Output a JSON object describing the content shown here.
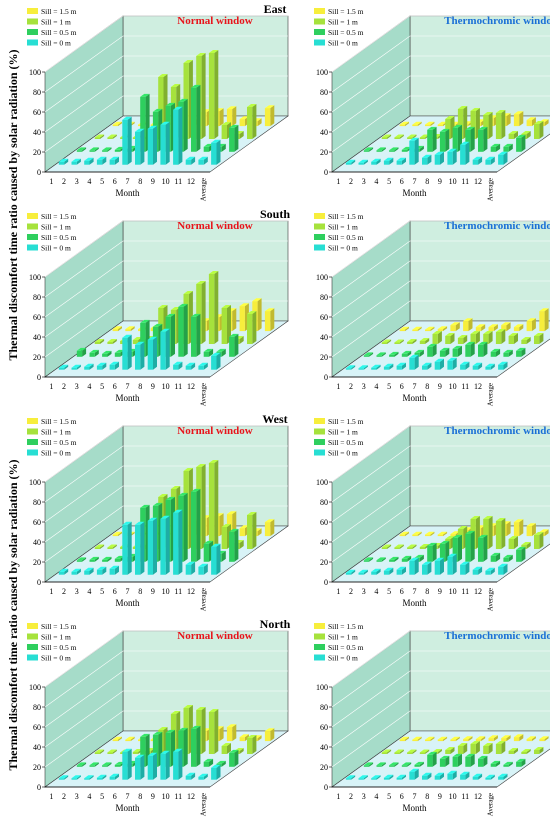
{
  "figure": {
    "y_axis_title": "Thermal discomfort time ratio caused by solar radiation (%)",
    "row_titles": [
      "East",
      "South",
      "West",
      "North"
    ],
    "column_titles": [
      "Normal window",
      "Thermochromic window"
    ],
    "x_axis_title": "Month",
    "x_tick_labels": [
      "1",
      "2",
      "3",
      "4",
      "5",
      "6",
      "7",
      "8",
      "9",
      "10",
      "11",
      "12",
      "Average"
    ],
    "y_tick_labels": [
      "0",
      "20",
      "40",
      "60",
      "80",
      "100"
    ],
    "legend": [
      "Sill = 1.5 m",
      "Sill = 1 m",
      "Sill = 0.5 m",
      "Sill = 0 m"
    ],
    "colors": {
      "normal_title": "#e8141b",
      "thermochromic_title": "#1a6fd6",
      "series": [
        "#f7ee3c",
        "#a6e23c",
        "#2ecf5e",
        "#27ded3"
      ],
      "back_wall": "#cfeee0",
      "side_wall": "#a6dcc9",
      "floor": "#d8f3f7",
      "grid": "#ffffff"
    }
  },
  "chart_data": [
    {
      "type": "bar",
      "orientation": "East",
      "window": "Normal window",
      "title": "Normal window",
      "xlabel": "Month",
      "ylabel": "Thermal discomfort time ratio caused by solar radiation (%)",
      "ylim": [
        0,
        100
      ],
      "categories": [
        "1",
        "2",
        "3",
        "4",
        "5",
        "6",
        "7",
        "8",
        "9",
        "10",
        "11",
        "12",
        "Average"
      ],
      "series": [
        {
          "name": "Sill = 0 m",
          "values": [
            3,
            3,
            4,
            5,
            5,
            45,
            33,
            36,
            40,
            55,
            5,
            5,
            22
          ]
        },
        {
          "name": "Sill = 0.5 m",
          "values": [
            1,
            1,
            1,
            2,
            3,
            55,
            40,
            46,
            50,
            64,
            5,
            5,
            24
          ]
        },
        {
          "name": "Sill = 1 m",
          "values": [
            1,
            1,
            1,
            1,
            2,
            62,
            52,
            76,
            83,
            86,
            14,
            5,
            32
          ]
        },
        {
          "name": "Sill = 1.5 m",
          "values": [
            1,
            1,
            1,
            1,
            1,
            2,
            5,
            14,
            15,
            17,
            7,
            5,
            18
          ]
        }
      ]
    },
    {
      "type": "bar",
      "orientation": "East",
      "window": "Thermochromic window",
      "title": "Thermochromic window",
      "xlabel": "Month",
      "ylabel": "Thermal discomfort time ratio caused by solar radiation (%)",
      "ylim": [
        0,
        100
      ],
      "categories": [
        "1",
        "2",
        "3",
        "4",
        "5",
        "6",
        "7",
        "8",
        "9",
        "10",
        "11",
        "12",
        "Average"
      ],
      "series": [
        {
          "name": "Sill = 0 m",
          "values": [
            2,
            2,
            3,
            4,
            4,
            24,
            7,
            10,
            13,
            20,
            5,
            5,
            10
          ]
        },
        {
          "name": "Sill = 0.5 m",
          "values": [
            1,
            1,
            1,
            2,
            3,
            22,
            20,
            24,
            22,
            22,
            5,
            5,
            14
          ]
        },
        {
          "name": "Sill = 1 m",
          "values": [
            1,
            1,
            1,
            1,
            2,
            20,
            30,
            28,
            24,
            26,
            5,
            5,
            15
          ]
        },
        {
          "name": "Sill = 1.5 m",
          "values": [
            1,
            1,
            1,
            1,
            1,
            2,
            4,
            8,
            10,
            12,
            6,
            4,
            6
          ]
        }
      ]
    },
    {
      "type": "bar",
      "orientation": "South",
      "window": "Normal window",
      "title": "Normal window",
      "xlabel": "Month",
      "ylabel": "Thermal discomfort time ratio caused by solar radiation (%)",
      "ylim": [
        0,
        100
      ],
      "categories": [
        "1",
        "2",
        "3",
        "4",
        "5",
        "6",
        "7",
        "8",
        "9",
        "10",
        "11",
        "12",
        "Average"
      ],
      "series": [
        {
          "name": "Sill = 0 m",
          "values": [
            2,
            2,
            3,
            4,
            5,
            32,
            25,
            30,
            38,
            5,
            4,
            4,
            14
          ]
        },
        {
          "name": "Sill = 0.5 m",
          "values": [
            6,
            4,
            3,
            4,
            5,
            34,
            30,
            40,
            50,
            40,
            5,
            5,
            20
          ]
        },
        {
          "name": "Sill = 1 m",
          "values": [
            2,
            2,
            3,
            4,
            5,
            36,
            34,
            50,
            60,
            70,
            36,
            5,
            30
          ]
        },
        {
          "name": "Sill = 1.5 m",
          "values": [
            2,
            2,
            2,
            3,
            10,
            12,
            10,
            10,
            14,
            20,
            25,
            30,
            20
          ]
        }
      ]
    },
    {
      "type": "bar",
      "orientation": "South",
      "window": "Thermochromic window",
      "title": "Thermochromic window",
      "xlabel": "Month",
      "ylabel": "Thermal discomfort time ratio caused by solar radiation (%)",
      "ylim": [
        0,
        100
      ],
      "categories": [
        "1",
        "2",
        "3",
        "4",
        "5",
        "6",
        "7",
        "8",
        "9",
        "10",
        "11",
        "12",
        "Average"
      ],
      "series": [
        {
          "name": "Sill = 0 m",
          "values": [
            1,
            1,
            2,
            3,
            4,
            12,
            4,
            8,
            9,
            5,
            4,
            3,
            5
          ]
        },
        {
          "name": "Sill = 0.5 m",
          "values": [
            1,
            1,
            2,
            3,
            4,
            10,
            6,
            8,
            12,
            12,
            5,
            4,
            6
          ]
        },
        {
          "name": "Sill = 1 m",
          "values": [
            1,
            1,
            2,
            3,
            10,
            8,
            6,
            10,
            10,
            12,
            8,
            4,
            8
          ]
        },
        {
          "name": "Sill = 1.5 m",
          "values": [
            1,
            1,
            1,
            2,
            6,
            10,
            4,
            4,
            6,
            4,
            10,
            20,
            10
          ]
        }
      ]
    },
    {
      "type": "bar",
      "orientation": "West",
      "window": "Normal window",
      "title": "Normal window",
      "xlabel": "Month",
      "ylabel": "Thermal discomfort time ratio caused by solar radiation (%)",
      "ylim": [
        0,
        100
      ],
      "categories": [
        "1",
        "2",
        "3",
        "4",
        "5",
        "6",
        "7",
        "8",
        "9",
        "10",
        "11",
        "12",
        "Average"
      ],
      "series": [
        {
          "name": "Sill = 0 m",
          "values": [
            3,
            3,
            4,
            5,
            6,
            50,
            50,
            54,
            56,
            62,
            10,
            8,
            28
          ]
        },
        {
          "name": "Sill = 0.5 m",
          "values": [
            1,
            2,
            2,
            3,
            5,
            54,
            56,
            62,
            66,
            70,
            18,
            8,
            30
          ]
        },
        {
          "name": "Sill = 1 m",
          "values": [
            1,
            1,
            2,
            2,
            4,
            52,
            60,
            78,
            82,
            86,
            22,
            6,
            34
          ]
        },
        {
          "name": "Sill = 1.5 m",
          "values": [
            1,
            1,
            1,
            1,
            2,
            4,
            14,
            18,
            20,
            22,
            8,
            5,
            14
          ]
        }
      ]
    },
    {
      "type": "bar",
      "orientation": "West",
      "window": "Thermochromic window",
      "title": "Thermochromic window",
      "xlabel": "Month",
      "ylabel": "Thermal discomfort time ratio caused by solar radiation (%)",
      "ylim": [
        0,
        100
      ],
      "categories": [
        "1",
        "2",
        "3",
        "4",
        "5",
        "6",
        "7",
        "8",
        "9",
        "10",
        "11",
        "12",
        "Average"
      ],
      "series": [
        {
          "name": "Sill = 0 m",
          "values": [
            2,
            2,
            3,
            4,
            5,
            14,
            10,
            14,
            18,
            10,
            5,
            4,
            8
          ]
        },
        {
          "name": "Sill = 0.5 m",
          "values": [
            1,
            1,
            2,
            3,
            4,
            16,
            18,
            24,
            28,
            24,
            6,
            4,
            12
          ]
        },
        {
          "name": "Sill = 1 m",
          "values": [
            1,
            1,
            1,
            2,
            3,
            10,
            20,
            30,
            30,
            28,
            10,
            4,
            14
          ]
        },
        {
          "name": "Sill = 1.5 m",
          "values": [
            1,
            1,
            1,
            1,
            2,
            6,
            8,
            10,
            12,
            14,
            10,
            4,
            7
          ]
        }
      ]
    },
    {
      "type": "bar",
      "orientation": "North",
      "window": "Normal window",
      "title": "Normal window",
      "xlabel": "Month",
      "ylabel": "Thermal discomfort time ratio caused by solar radiation (%)",
      "ylim": [
        0,
        100
      ],
      "categories": [
        "1",
        "2",
        "3",
        "4",
        "5",
        "6",
        "7",
        "8",
        "9",
        "10",
        "11",
        "12",
        "Average"
      ],
      "series": [
        {
          "name": "Sill = 0 m",
          "values": [
            1,
            1,
            1,
            2,
            3,
            28,
            22,
            24,
            26,
            28,
            4,
            3,
            12
          ]
        },
        {
          "name": "Sill = 0.5 m",
          "values": [
            1,
            1,
            1,
            2,
            3,
            30,
            32,
            34,
            36,
            38,
            5,
            3,
            14
          ]
        },
        {
          "name": "Sill = 1 m",
          "values": [
            1,
            1,
            1,
            2,
            3,
            24,
            40,
            46,
            44,
            42,
            8,
            3,
            16
          ]
        },
        {
          "name": "Sill = 1.5 m",
          "values": [
            1,
            1,
            1,
            1,
            2,
            3,
            6,
            10,
            12,
            14,
            4,
            3,
            10
          ]
        }
      ]
    },
    {
      "type": "bar",
      "orientation": "North",
      "window": "Thermochromic window",
      "title": "Thermochromic window",
      "xlabel": "Month",
      "ylabel": "Thermal discomfort time ratio caused by solar radiation (%)",
      "ylim": [
        0,
        100
      ],
      "categories": [
        "1",
        "2",
        "3",
        "4",
        "5",
        "6",
        "7",
        "8",
        "9",
        "10",
        "11",
        "12",
        "Average"
      ],
      "series": [
        {
          "name": "Sill = 0 m",
          "values": [
            1,
            1,
            1,
            2,
            2,
            8,
            4,
            4,
            6,
            5,
            3,
            2,
            3
          ]
        },
        {
          "name": "Sill = 0.5 m",
          "values": [
            1,
            1,
            1,
            1,
            2,
            12,
            8,
            10,
            10,
            8,
            3,
            2,
            5
          ]
        },
        {
          "name": "Sill = 1 m",
          "values": [
            1,
            1,
            1,
            1,
            2,
            4,
            8,
            10,
            8,
            10,
            3,
            2,
            4
          ]
        },
        {
          "name": "Sill = 1.5 m",
          "values": [
            1,
            1,
            1,
            1,
            1,
            2,
            2,
            3,
            3,
            4,
            2,
            2,
            2
          ]
        }
      ]
    }
  ]
}
